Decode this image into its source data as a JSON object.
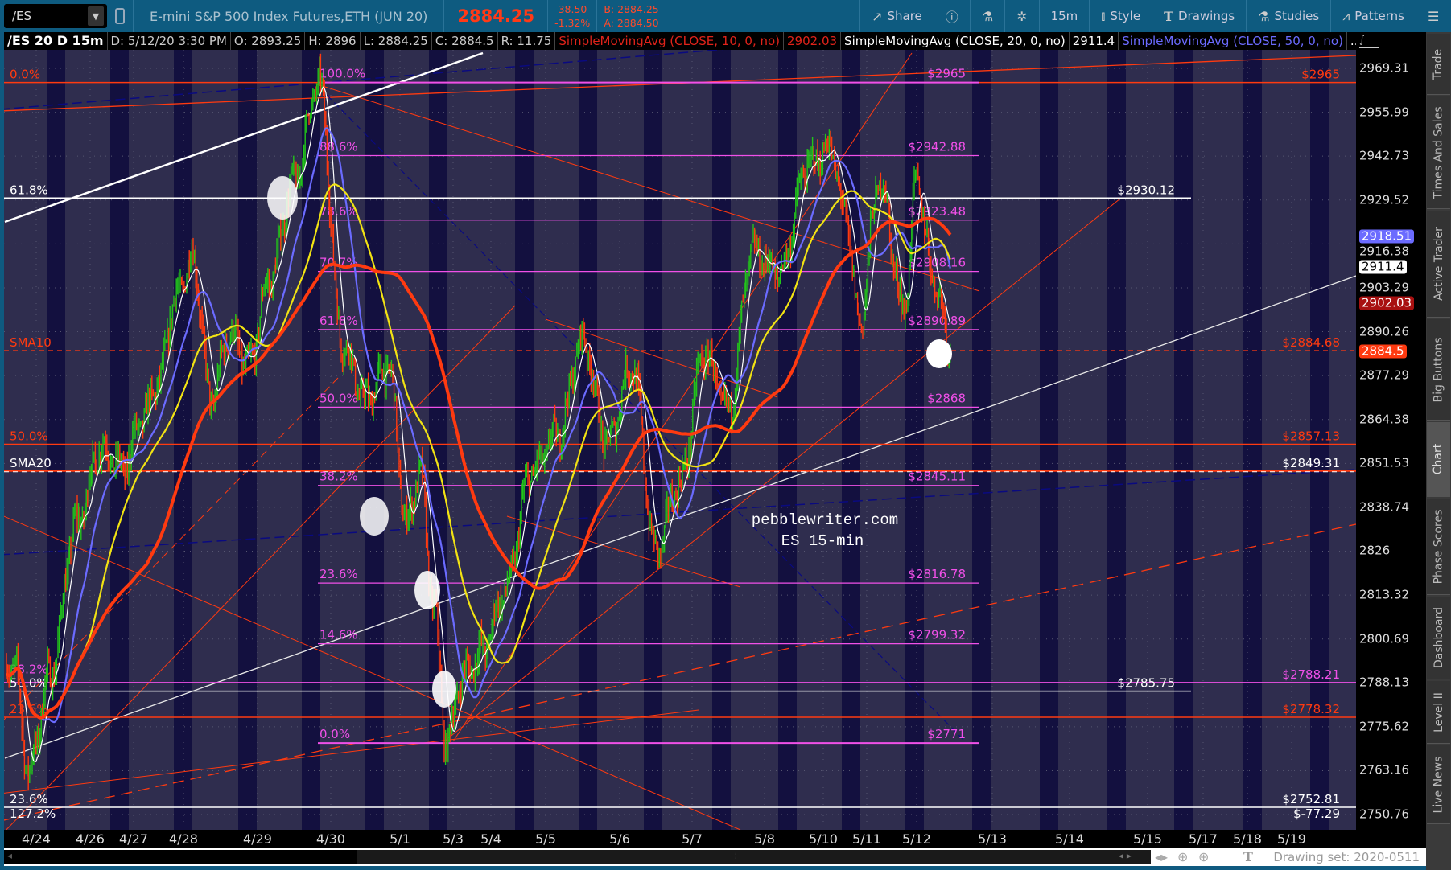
{
  "topbar": {
    "symbol": "/ES",
    "description": "E-mini S&P 500 Index Futures,ETH (JUN 20)",
    "last": "2884.25",
    "change": "-38.50",
    "change_pct": "-1.32%",
    "bid": "B: 2884.25",
    "ask": "A: 2884.50",
    "buttons": {
      "share": "Share",
      "timeframe": "15m",
      "style": "Style",
      "drawings": "Drawings",
      "studies": "Studies",
      "patterns": "Patterns"
    }
  },
  "infobar": {
    "chart_id": "/ES 20 D 15m",
    "date": "D: 5/12/20 3:30 PM",
    "open": "O: 2893.25",
    "high": "H: 2896",
    "low": "L: 2884.25",
    "close": "C: 2884.5",
    "range": "R: 11.75",
    "studies": [
      {
        "label": "SimpleMovingAvg (CLOSE, 10, 0, no)",
        "value": "2902.03",
        "color": "#e0231a"
      },
      {
        "label": "SimpleMovingAvg (CLOSE, 20, 0, no)",
        "value": "2911.4",
        "color": "#ffffff"
      },
      {
        "label": "SimpleMovingAvg (CLOSE, 50, 0, no)",
        "value": "...",
        "color": "#6b6bff"
      }
    ]
  },
  "watermark": {
    "line1": "pebblewriter.com",
    "line2": "ES 15-min"
  },
  "chart_data": {
    "type": "candlestick",
    "scale": "log",
    "ylim": [
      2750.76,
      2969.31
    ],
    "y_ticks": [
      "2969.31",
      "2955.99",
      "2942.73",
      "2929.52",
      "2916.38",
      "2903.29",
      "2890.26",
      "2877.29",
      "2864.38",
      "2851.53",
      "2838.74",
      "2826",
      "2813.32",
      "2800.69",
      "2788.13",
      "2775.62",
      "2763.16",
      "2750.76"
    ],
    "x_ticks": [
      "4/24",
      "4/26",
      "4/27",
      "4/28",
      "4/29",
      "4/30",
      "5/1",
      "5/3",
      "5/4",
      "5/5",
      "5/6",
      "5/7",
      "5/8",
      "5/10",
      "5/11",
      "5/12",
      "5/13",
      "5/14",
      "5/15",
      "5/17",
      "5/18",
      "5/19"
    ],
    "price_path": [
      {
        "date": "4/23",
        "price": 2793
      },
      {
        "date": "4/23",
        "price": 2763
      },
      {
        "date": "4/24",
        "price": 2790
      },
      {
        "date": "4/24",
        "price": 2834
      },
      {
        "date": "4/26",
        "price": 2856
      },
      {
        "date": "4/26",
        "price": 2850
      },
      {
        "date": "4/27",
        "price": 2864
      },
      {
        "date": "4/27",
        "price": 2875
      },
      {
        "date": "4/27",
        "price": 2900
      },
      {
        "date": "4/28",
        "price": 2912
      },
      {
        "date": "4/28",
        "price": 2870
      },
      {
        "date": "4/28",
        "price": 2890
      },
      {
        "date": "4/28",
        "price": 2880
      },
      {
        "date": "4/29",
        "price": 2906
      },
      {
        "date": "4/29",
        "price": 2935
      },
      {
        "date": "4/29",
        "price": 2965
      },
      {
        "date": "4/30",
        "price": 2887
      },
      {
        "date": "4/30",
        "price": 2870
      },
      {
        "date": "4/30",
        "price": 2880
      },
      {
        "date": "5/1",
        "price": 2834
      },
      {
        "date": "5/1",
        "price": 2849
      },
      {
        "date": "5/1",
        "price": 2811
      },
      {
        "date": "5/1",
        "price": 2771
      },
      {
        "date": "5/3",
        "price": 2790
      },
      {
        "date": "5/3",
        "price": 2797
      },
      {
        "date": "5/4",
        "price": 2814
      },
      {
        "date": "5/4",
        "price": 2849
      },
      {
        "date": "5/5",
        "price": 2860
      },
      {
        "date": "5/5",
        "price": 2888
      },
      {
        "date": "5/5",
        "price": 2857
      },
      {
        "date": "5/6",
        "price": 2880
      },
      {
        "date": "5/6",
        "price": 2826
      },
      {
        "date": "5/6",
        "price": 2846
      },
      {
        "date": "5/7",
        "price": 2884
      },
      {
        "date": "5/7",
        "price": 2867
      },
      {
        "date": "5/7",
        "price": 2914
      },
      {
        "date": "5/8",
        "price": 2908
      },
      {
        "date": "5/8",
        "price": 2940
      },
      {
        "date": "5/10",
        "price": 2945
      },
      {
        "date": "5/10",
        "price": 2925
      },
      {
        "date": "5/10",
        "price": 2893
      },
      {
        "date": "5/11",
        "price": 2935
      },
      {
        "date": "5/11",
        "price": 2897
      },
      {
        "date": "5/12",
        "price": 2935
      },
      {
        "date": "5/12",
        "price": 2906
      },
      {
        "date": "5/12",
        "price": 2884.5
      }
    ],
    "moving_averages": [
      {
        "name": "SMA10",
        "color": "#ffffff"
      },
      {
        "name": "SMA20",
        "color": "#6b6bff"
      },
      {
        "name": "SMA50",
        "color": "#f2e313"
      },
      {
        "name": "SMA",
        "color": "#ff3a10"
      }
    ],
    "candle_colors": {
      "up": "#22c41a",
      "down": "#ff3a10"
    },
    "fib_retracement": {
      "color": "#f050e8",
      "levels": [
        {
          "pct": "100.0%",
          "price": 2965,
          "label": "$2965"
        },
        {
          "pct": "88.6%",
          "price": 2942.88,
          "label": "$2942.88"
        },
        {
          "pct": "78.6%",
          "price": 2923.48,
          "label": "$2923.48"
        },
        {
          "pct": "70.7%",
          "price": 2908.16,
          "label": "$2908.16"
        },
        {
          "pct": "61.8%",
          "price": 2890.89,
          "label": "$2890.89"
        },
        {
          "pct": "50.0%",
          "price": 2868,
          "label": "$2868"
        },
        {
          "pct": "38.2%",
          "price": 2845.11,
          "label": "$2845.11"
        },
        {
          "pct": "23.6%",
          "price": 2816.78,
          "label": "$2816.78"
        },
        {
          "pct": "14.6%",
          "price": 2799.32,
          "label": "$2799.32"
        },
        {
          "pct": "0.0%",
          "price": 2771,
          "label": "$2771"
        }
      ]
    },
    "levels": [
      {
        "left": "0.0%",
        "right": "$2965",
        "price": 2965,
        "color": "#ff3a10",
        "style": "solid",
        "extent": "full"
      },
      {
        "left": "61.8%",
        "right": "$2930.12",
        "price": 2930.12,
        "color": "#ffffff",
        "style": "solid",
        "extent": "partial"
      },
      {
        "left": "SMA10",
        "right": "$2884.68",
        "price": 2884.68,
        "color": "#ff3a10",
        "style": "dashed",
        "extent": "full"
      },
      {
        "left": "50.0%",
        "right": "$2857.13",
        "price": 2857.13,
        "color": "#ff3a10",
        "style": "solid",
        "extent": "full"
      },
      {
        "left": "SMA20",
        "right": "$2849.31",
        "price": 2849.31,
        "color": "#ffffff",
        "style": "redwhite",
        "extent": "full"
      },
      {
        "left": "38.2%",
        "right": "$2788.21",
        "price": 2788.21,
        "color": "#f050e8",
        "style": "solid",
        "extent": "full"
      },
      {
        "left": "50.0%",
        "right": "$2785.75",
        "price": 2785.75,
        "color": "#ffffff",
        "style": "solid",
        "extent": "partial"
      },
      {
        "left": "23.6%",
        "right": "$2778.32",
        "price": 2778.32,
        "color": "#ff3a10",
        "style": "solid",
        "extent": "full"
      },
      {
        "left": "23.6%",
        "right": "$2752.81",
        "price": 2752.81,
        "color": "#ffffff",
        "style": "solid",
        "extent": "full"
      },
      {
        "left": "127.2%",
        "right": "$-77.29",
        "price": null,
        "color": "#ffffff",
        "style": "none",
        "extent": "full"
      }
    ],
    "price_badges": [
      {
        "value": "2918.51",
        "bg": "#6b6bff",
        "fg": "#ffffff"
      },
      {
        "value": "2911.4",
        "bg": "#ffffff",
        "fg": "#000000"
      },
      {
        "value": "2902.03",
        "bg": "#a81010",
        "fg": "#ffffff"
      },
      {
        "value": "2884.5",
        "bg": "#ff3a10",
        "fg": "#ffffff"
      }
    ]
  },
  "side_tabs": [
    "Trade",
    "Times And Sales",
    "Active Trader",
    "Big Buttons",
    "Chart",
    "Phase Scores",
    "Dashboard",
    "Level II",
    "Live News"
  ],
  "selected_tab": "Chart",
  "bottom": {
    "drawing_set": "Drawing set: 2020-0511"
  }
}
